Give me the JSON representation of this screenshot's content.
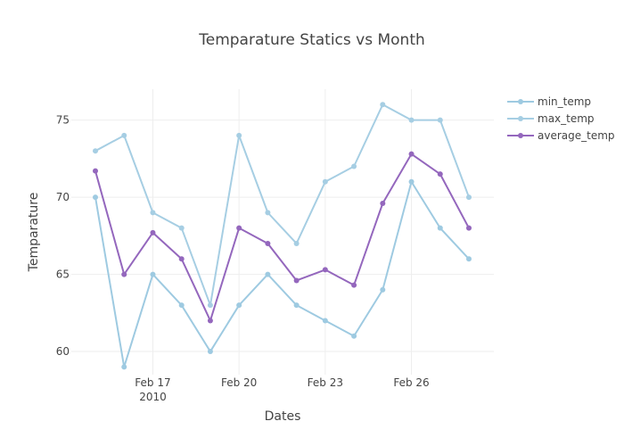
{
  "chart_data": {
    "type": "line",
    "title": "Temparature Statics vs Month",
    "xlabel": "Dates",
    "ylabel": "Temparature",
    "x": [
      "2010-02-15",
      "2010-02-16",
      "2010-02-17",
      "2010-02-18",
      "2010-02-19",
      "2010-02-20",
      "2010-02-21",
      "2010-02-22",
      "2010-02-23",
      "2010-02-24",
      "2010-02-25",
      "2010-02-26",
      "2010-02-27",
      "2010-02-28"
    ],
    "xlim": [
      "2010-02-15",
      "2010-02-28"
    ],
    "ylim": [
      58.5,
      77
    ],
    "x_ticks": [
      {
        "date": "2010-02-17",
        "label": "Feb 17",
        "sublabel": "2010"
      },
      {
        "date": "2010-02-20",
        "label": "Feb 20",
        "sublabel": ""
      },
      {
        "date": "2010-02-23",
        "label": "Feb 23",
        "sublabel": ""
      },
      {
        "date": "2010-02-26",
        "label": "Feb 26",
        "sublabel": ""
      }
    ],
    "y_ticks": [
      60,
      65,
      70,
      75
    ],
    "grid": true,
    "legend_position": "top-right",
    "series": [
      {
        "name": "min_temp",
        "color": "#9ecae1",
        "values": [
          70,
          59,
          65,
          63,
          60,
          63,
          65,
          63,
          62,
          61,
          64,
          71,
          68,
          66
        ]
      },
      {
        "name": "max_temp",
        "color": "#a6cee3",
        "values": [
          73,
          74,
          69,
          68,
          63,
          74,
          69,
          67,
          71,
          72,
          76,
          75,
          75,
          70
        ]
      },
      {
        "name": "average_temp",
        "color": "#9467bd",
        "values": [
          71.7,
          65,
          67.7,
          66,
          62,
          68,
          67,
          64.6,
          65.3,
          64.3,
          69.6,
          72.8,
          71.5,
          68
        ]
      }
    ]
  }
}
